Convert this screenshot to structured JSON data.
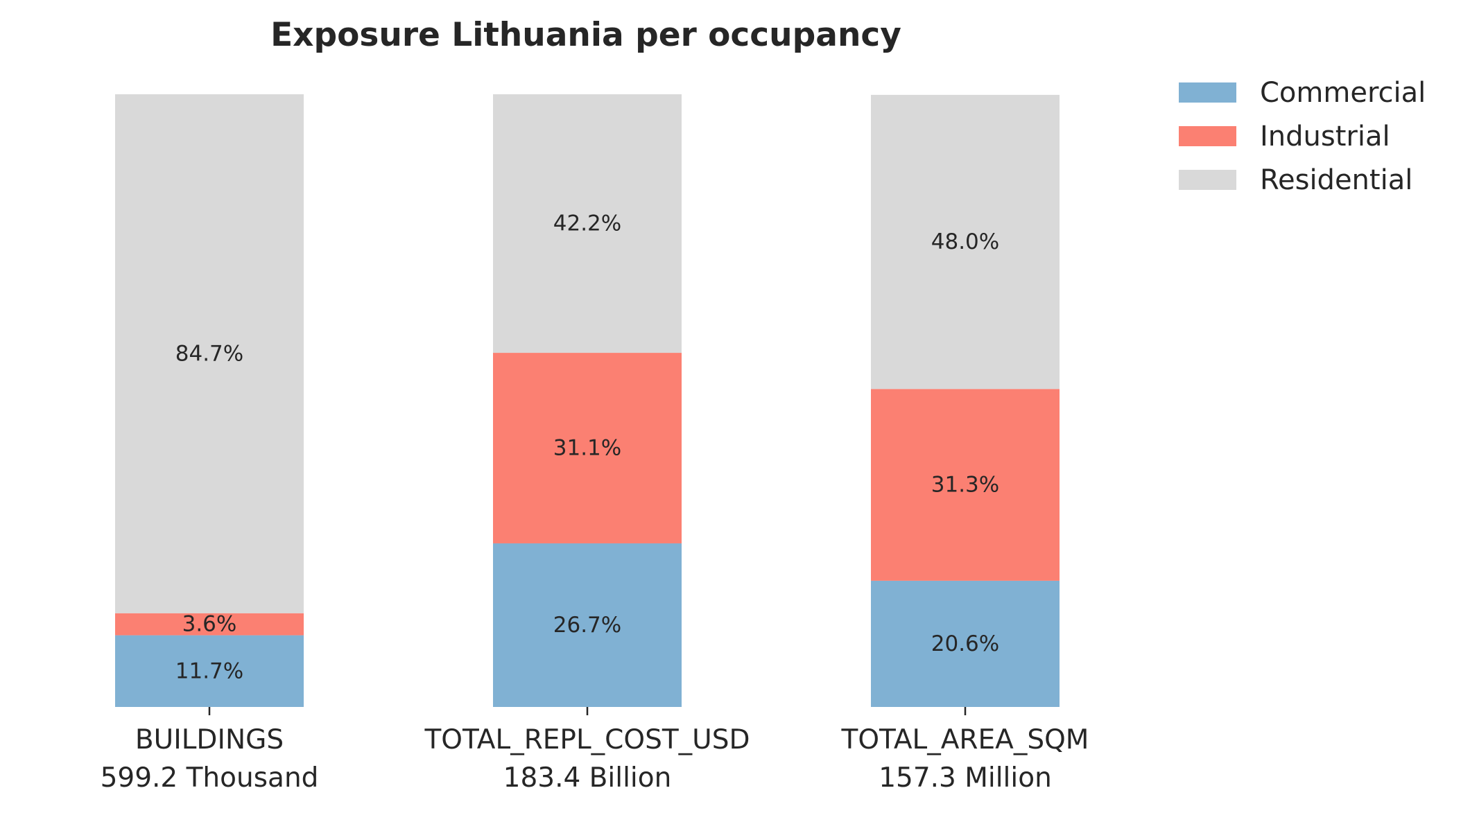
{
  "chart_data": {
    "type": "bar",
    "stacked": true,
    "normalized": true,
    "title": "Exposure Lithuania per occupancy",
    "categories": [
      "BUILDINGS",
      "TOTAL_REPL_COST_USD",
      "TOTAL_AREA_SQM"
    ],
    "category_totals": [
      "599.2 Thousand",
      "183.4 Billion",
      "157.3 Million"
    ],
    "series": [
      {
        "name": "Commercial",
        "color": "#80b1d3",
        "values": [
          11.7,
          26.7,
          20.6
        ]
      },
      {
        "name": "Industrial",
        "color": "#fb8072",
        "values": [
          3.6,
          31.1,
          31.3
        ]
      },
      {
        "name": "Residential",
        "color": "#d9d9d9",
        "values": [
          84.7,
          42.2,
          48.0
        ]
      }
    ],
    "value_suffix": "%",
    "ylim": [
      0,
      100
    ],
    "grid": false,
    "legend_position": "top-right"
  }
}
